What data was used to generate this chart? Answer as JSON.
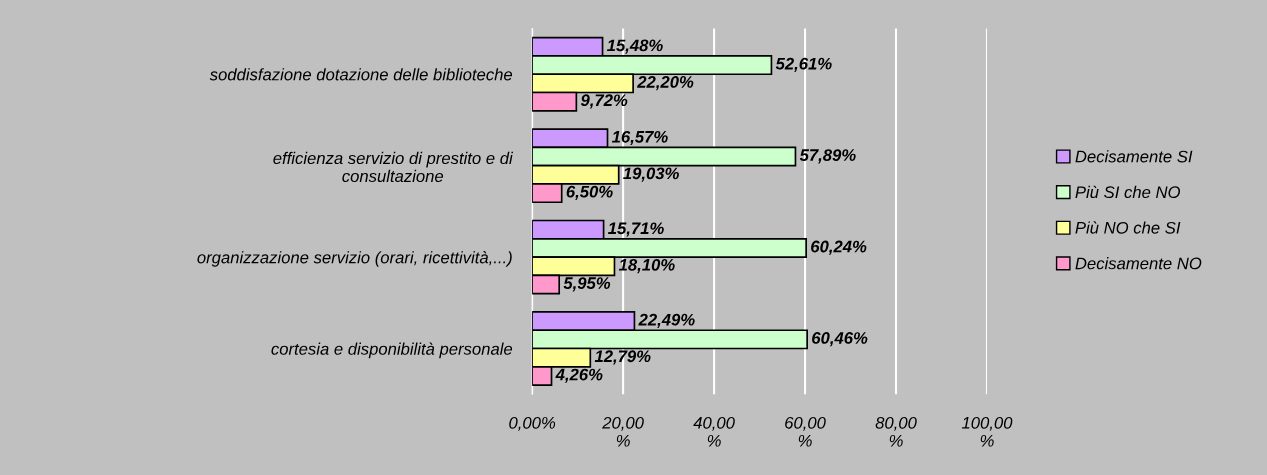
{
  "chart_data": {
    "type": "bar",
    "orientation": "horizontal",
    "categories": [
      "soddisfazione dotazione delle biblioteche",
      "efficienza servizio di prestito e di\nconsultazione",
      "organizzazione servizio (orari, ricettività,...)",
      "cortesia e disponibilità personale"
    ],
    "series": [
      {
        "name": "Decisamente SI",
        "color": "#cc99ff",
        "values": [
          15.48,
          16.57,
          15.71,
          22.49
        ],
        "value_labels": [
          "15,48%",
          "16,57%",
          "15,71%",
          "22,49%"
        ]
      },
      {
        "name": "Più SI che NO",
        "color": "#ccffcc",
        "values": [
          52.61,
          57.89,
          60.24,
          60.46
        ],
        "value_labels": [
          "52,61%",
          "57,89%",
          "60,24%",
          "60,46%"
        ]
      },
      {
        "name": "Più NO che SI",
        "color": "#ffff99",
        "values": [
          22.2,
          19.03,
          18.1,
          12.79
        ],
        "value_labels": [
          "22,20%",
          "19,03%",
          "18,10%",
          "12,79%"
        ]
      },
      {
        "name": "Decisamente NO",
        "color": "#ff99cc",
        "values": [
          9.72,
          6.5,
          5.95,
          4.26
        ],
        "value_labels": [
          "9,72%",
          "6,50%",
          "5,95%",
          "4,26%"
        ]
      }
    ],
    "xlim": [
      0,
      100
    ],
    "xticks": [
      {
        "value": 0,
        "label": "0,00%"
      },
      {
        "value": 20,
        "label": "20,00\n%"
      },
      {
        "value": 40,
        "label": "40,00\n%"
      },
      {
        "value": 60,
        "label": "60,00\n%"
      },
      {
        "value": 80,
        "label": "80,00\n%"
      },
      {
        "value": 100,
        "label": "100,00\n%"
      }
    ],
    "grid": "x",
    "legend": "right"
  }
}
